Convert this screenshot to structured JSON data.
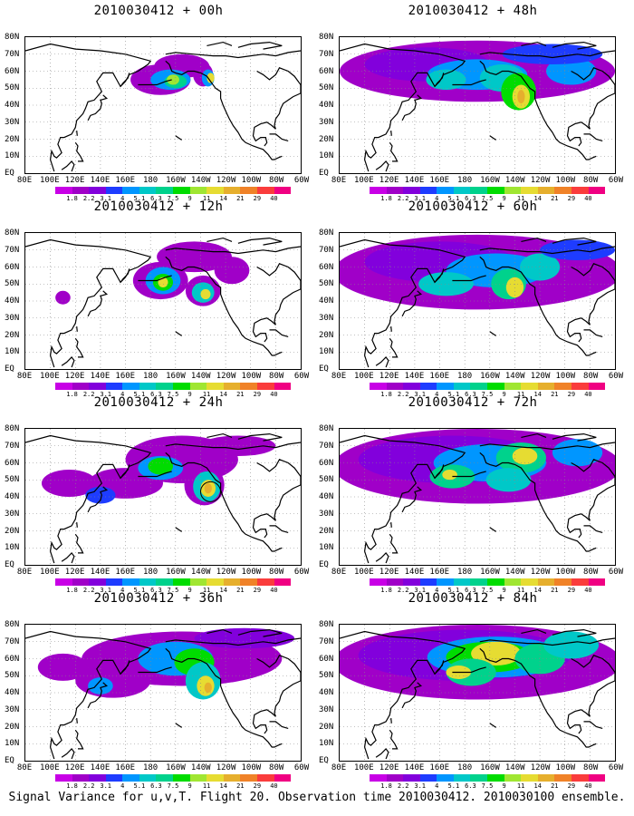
{
  "panels": [
    {
      "title": "2010030412 + 00h",
      "field_level": "low"
    },
    {
      "title": "2010030412 + 12h",
      "field_level": "low-medium"
    },
    {
      "title": "2010030412 + 24h",
      "field_level": "medium"
    },
    {
      "title": "2010030412 + 36h",
      "field_level": "medium-high"
    },
    {
      "title": "2010030412 + 48h",
      "field_level": "high"
    },
    {
      "title": "2010030412 + 60h",
      "field_level": "high"
    },
    {
      "title": "2010030412 + 72h",
      "field_level": "very high"
    },
    {
      "title": "2010030412 + 84h",
      "field_level": "very high"
    }
  ],
  "lat_labels": [
    "80N",
    "70N",
    "60N",
    "50N",
    "40N",
    "30N",
    "20N",
    "10N",
    "EQ"
  ],
  "lon_labels": [
    "80E",
    "100E",
    "120E",
    "140E",
    "160E",
    "180",
    "160W",
    "140W",
    "120W",
    "100W",
    "80W",
    "60W"
  ],
  "colorbar": {
    "labels": [
      "1.8",
      "2.2",
      "3.1",
      "4",
      "5.1",
      "6.3",
      "7.5",
      "9",
      "11",
      "14",
      "21",
      "29",
      "40"
    ],
    "colors": [
      "#a000c8",
      "#8200dc",
      "#1e3cff",
      "#0096ff",
      "#00c8c8",
      "#00d28c",
      "#00dc00",
      "#a0e632",
      "#e6dc32",
      "#e6af2d",
      "#f08228",
      "#fa3c3c",
      "#f00082"
    ]
  },
  "footer": "Signal Variance for u,v,T. Flight 20. Observation time 2010030412. 2010030100 ensemble."
}
